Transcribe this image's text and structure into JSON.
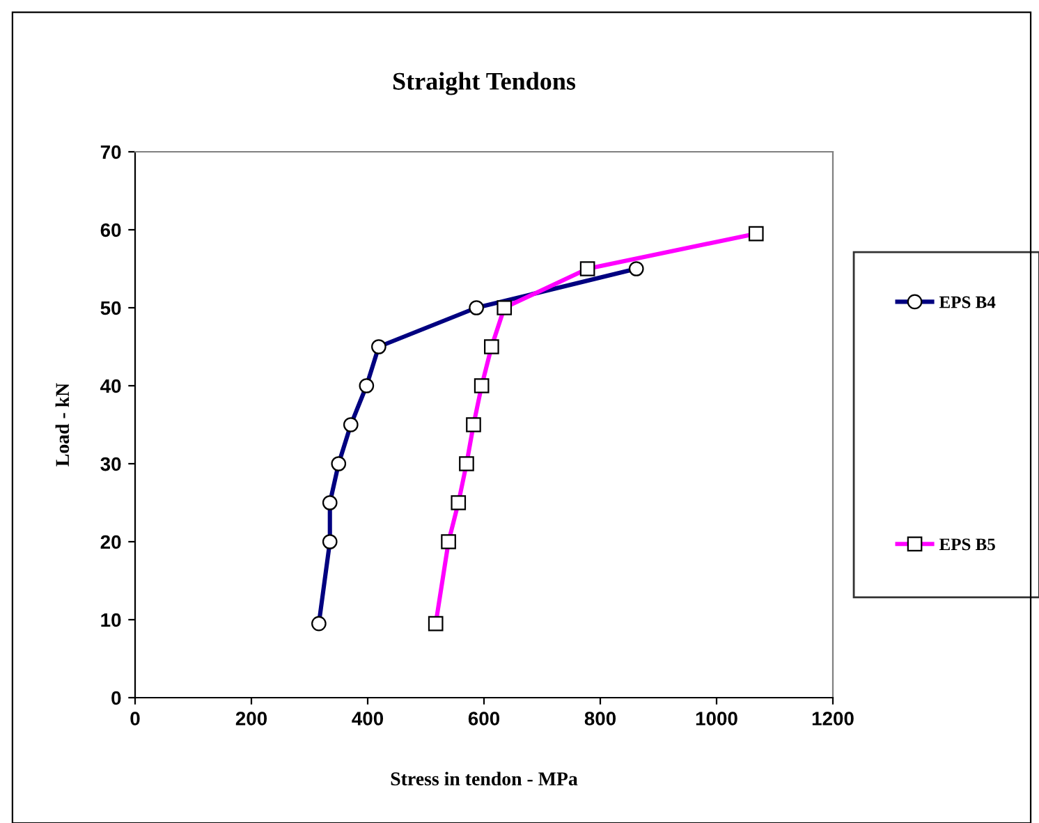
{
  "chart_data": {
    "type": "line",
    "title": "Straight Tendons",
    "xlabel": "Stress in tendon - MPa",
    "ylabel": "Load - kN",
    "xlim": [
      0,
      1200
    ],
    "xticks": [
      0,
      200,
      400,
      600,
      800,
      1000,
      1200
    ],
    "ylim": [
      0,
      70
    ],
    "yticks": [
      0,
      10,
      20,
      30,
      40,
      50,
      60,
      70
    ],
    "grid": false,
    "legend": "right",
    "series": [
      {
        "name": "EPS B4",
        "color": "#000080",
        "marker": "circle",
        "x": [
          316,
          335,
          335,
          350,
          371,
          398,
          419,
          587,
          862
        ],
        "values": [
          9.5,
          20,
          25,
          30,
          35,
          40,
          45,
          50,
          55
        ]
      },
      {
        "name": "EPS B5",
        "color": "#ff00ff",
        "marker": "square",
        "x": [
          517,
          539,
          556,
          570,
          582,
          596,
          613,
          635,
          778,
          1068
        ],
        "values": [
          9.5,
          20,
          25,
          30,
          35,
          40,
          45,
          50,
          55,
          59.5
        ]
      }
    ]
  }
}
